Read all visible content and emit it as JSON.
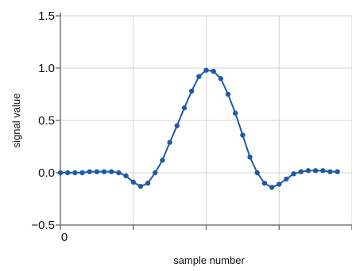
{
  "chart_data": {
    "type": "line",
    "title": "",
    "xlabel": "sample number",
    "ylabel": "signal value",
    "xlim": [
      0,
      40
    ],
    "ylim": [
      -0.5,
      1.5
    ],
    "xticks": [
      0,
      10,
      20,
      30,
      40
    ],
    "xtick_labels": [
      "0",
      "",
      "",
      "",
      ""
    ],
    "yticks": [
      -0.5,
      0.0,
      0.5,
      1.0,
      1.5
    ],
    "ytick_labels": [
      "−0.5",
      "0.0",
      "0.5",
      "1.0",
      "1.5"
    ],
    "grid": true,
    "legend": false,
    "colors": {
      "series": "#1f5aa6",
      "grid": "#d3d3d3",
      "axis": "#777777"
    },
    "series": [
      {
        "x": [
          0,
          1,
          2,
          3,
          4,
          5,
          6,
          7,
          8,
          9,
          10,
          11,
          12,
          13,
          14,
          15,
          16,
          17,
          18,
          19,
          20,
          21,
          22,
          23,
          24,
          25,
          26,
          27,
          28,
          29,
          30,
          31,
          32,
          33,
          34,
          35,
          36,
          37,
          38
        ],
        "values": [
          0,
          0,
          0,
          0,
          0.01,
          0.01,
          0.01,
          0.01,
          0,
          -0.03,
          -0.09,
          -0.13,
          -0.1,
          0,
          0.12,
          0.29,
          0.45,
          0.62,
          0.78,
          0.92,
          0.98,
          0.97,
          0.9,
          0.75,
          0.57,
          0.36,
          0.15,
          0,
          -0.1,
          -0.14,
          -0.11,
          -0.06,
          -0.01,
          0.01,
          0.02,
          0.02,
          0.02,
          0.01,
          0.01
        ]
      }
    ]
  }
}
